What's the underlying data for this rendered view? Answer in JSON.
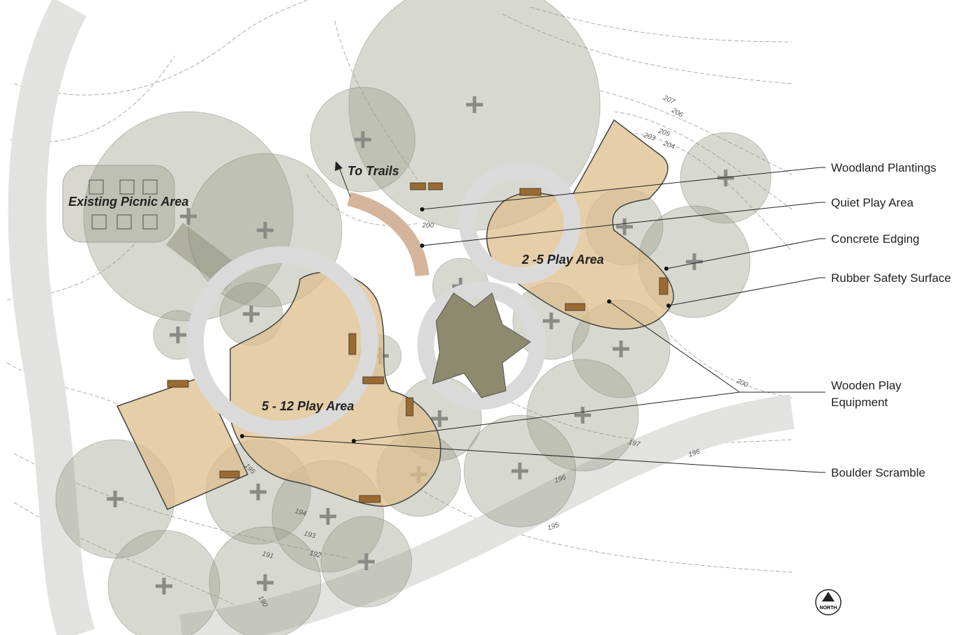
{
  "title_labels": {
    "picnic": "Existing Picnic Area",
    "trails": "To Trails",
    "small_play": "2 -5 Play Area",
    "large_play": "5 - 12 Play Area"
  },
  "callouts": [
    {
      "lines": [
        "Woodland Plantings"
      ]
    },
    {
      "lines": [
        "Quiet Play Area"
      ]
    },
    {
      "lines": [
        "Concrete Edging"
      ]
    },
    {
      "lines": [
        "Rubber Safety Surface"
      ]
    },
    {
      "lines": [
        "Wooden Play",
        "Equipment"
      ]
    },
    {
      "lines": [
        "Boulder Scramble"
      ]
    }
  ],
  "contour_labels": [
    "207",
    "206",
    "205",
    "204",
    "203",
    "200",
    "200",
    "197",
    "196",
    "196",
    "195",
    "195",
    "194",
    "193",
    "192",
    "191",
    "190"
  ],
  "north": "NORTH"
}
